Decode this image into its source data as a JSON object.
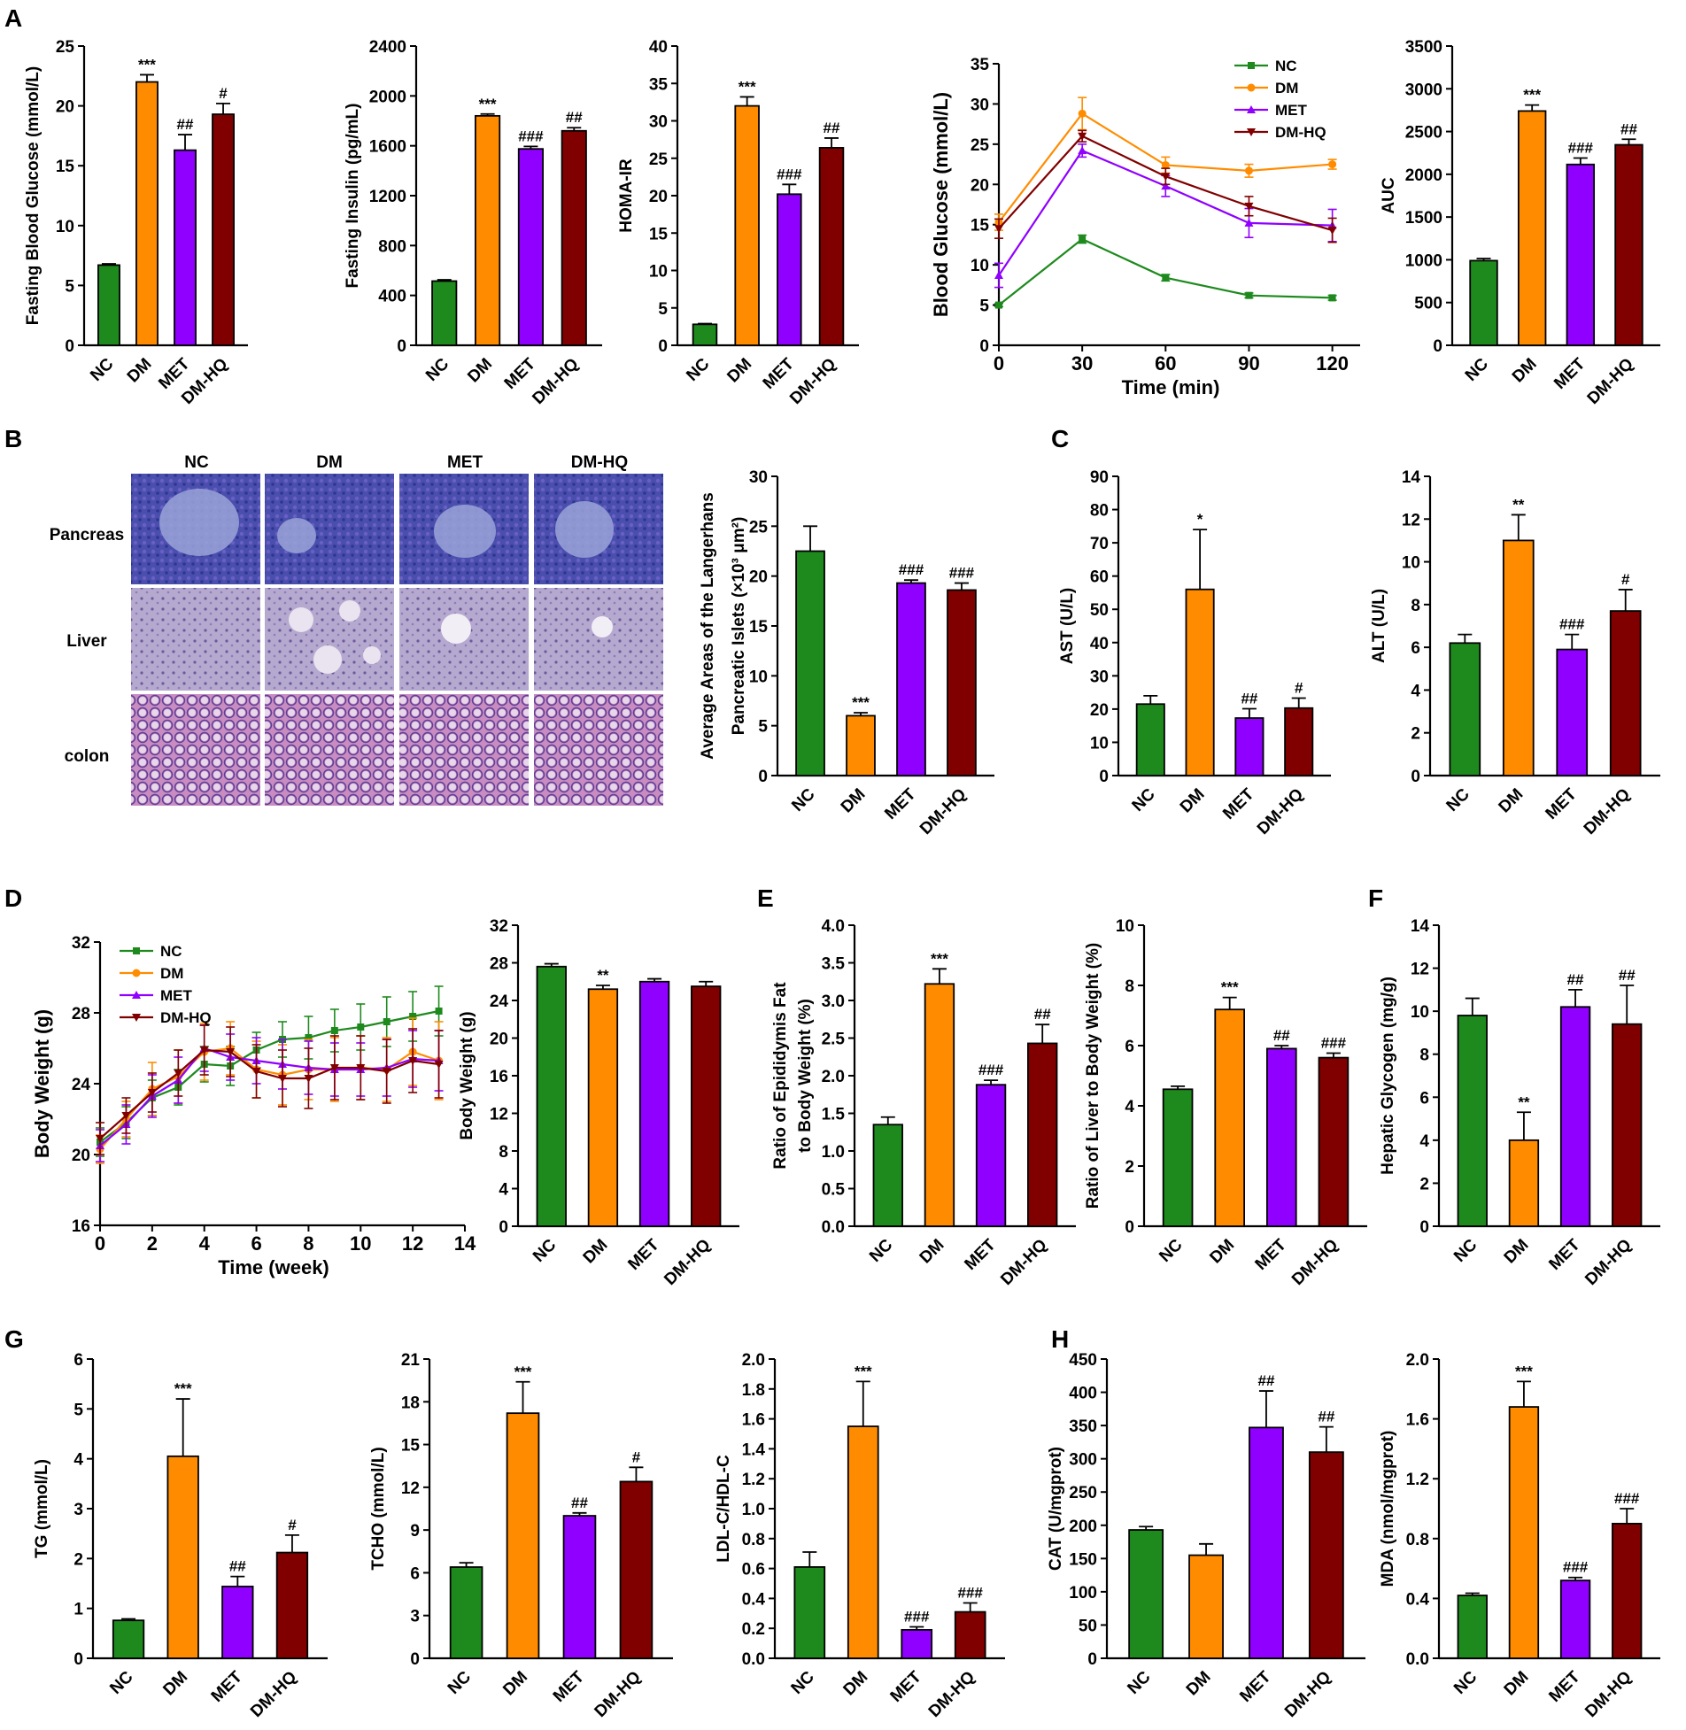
{
  "colors": {
    "NC": "#1e8a1e",
    "DM": "#ff8c00",
    "MET": "#8f00ff",
    "DMHQ": "#800000"
  },
  "panels": {
    "A": "A",
    "B": "B",
    "C": "C",
    "D": "D",
    "E": "E",
    "F": "F",
    "G": "G",
    "H": "H"
  },
  "histology": {
    "columns": [
      "NC",
      "DM",
      "MET",
      "DM-HQ"
    ],
    "rows": [
      "Pancreas",
      "Liver",
      "colon"
    ]
  },
  "chart_data": [
    {
      "id": "fbg",
      "type": "bar",
      "panel": "A",
      "ylabel": "Fasting Blood Glucose (mmol/L)",
      "ylim": [
        0,
        25
      ],
      "yticks": [
        0,
        5,
        10,
        15,
        20,
        25
      ],
      "categories": [
        "NC",
        "DM",
        "MET",
        "DM-HQ"
      ],
      "values": [
        6.7,
        22.0,
        16.3,
        19.3
      ],
      "errors": [
        0.1,
        0.6,
        1.3,
        0.9
      ],
      "annotations": [
        "",
        "***",
        "##",
        "#"
      ]
    },
    {
      "id": "fins",
      "type": "bar",
      "panel": "A",
      "ylabel": "Fasting Insulin (pg/mL)",
      "ylim": [
        0,
        2400
      ],
      "yticks": [
        0,
        400,
        800,
        1200,
        1600,
        2000,
        2400
      ],
      "categories": [
        "NC",
        "DM",
        "MET",
        "DM-HQ"
      ],
      "values": [
        515,
        1840,
        1575,
        1720
      ],
      "errors": [
        10,
        15,
        20,
        25
      ],
      "annotations": [
        "",
        "***",
        "###",
        "##"
      ]
    },
    {
      "id": "homa",
      "type": "bar",
      "panel": "A",
      "ylabel": "HOMA-IR",
      "ylim": [
        0,
        40
      ],
      "yticks": [
        0,
        5,
        10,
        15,
        20,
        25,
        30,
        35,
        40
      ],
      "categories": [
        "NC",
        "DM",
        "MET",
        "DM-HQ"
      ],
      "values": [
        2.8,
        32.0,
        20.2,
        26.4
      ],
      "errors": [
        0.1,
        1.2,
        1.3,
        1.3
      ],
      "annotations": [
        "",
        "***",
        "###",
        "##"
      ]
    },
    {
      "id": "ogtt",
      "type": "line",
      "panel": "A",
      "ylabel": "Blood Glucose (mmol/L)",
      "xlabel": "Time (min)",
      "xlim": [
        0,
        130
      ],
      "ylim": [
        0,
        35
      ],
      "xticks": [
        0,
        30,
        60,
        90,
        120
      ],
      "yticks": [
        0,
        5,
        10,
        15,
        20,
        25,
        30,
        35
      ],
      "x": [
        0,
        30,
        60,
        90,
        120
      ],
      "series": [
        {
          "name": "NC",
          "values": [
            5.0,
            13.2,
            8.4,
            6.2,
            5.9
          ],
          "errors": [
            0.2,
            0.5,
            0.4,
            0.3,
            0.3
          ]
        },
        {
          "name": "DM",
          "values": [
            15.3,
            28.8,
            22.4,
            21.7,
            22.5
          ],
          "errors": [
            1.0,
            2.0,
            1.0,
            0.8,
            0.6
          ]
        },
        {
          "name": "MET",
          "values": [
            8.7,
            24.2,
            19.8,
            15.2,
            14.9
          ],
          "errors": [
            1.5,
            0.8,
            1.3,
            1.8,
            2.0
          ]
        },
        {
          "name": "DM-HQ",
          "values": [
            14.5,
            26.0,
            21.0,
            17.3,
            14.3
          ],
          "errors": [
            1.2,
            0.7,
            1.0,
            1.2,
            1.5
          ]
        }
      ],
      "legend": "top-right"
    },
    {
      "id": "auc",
      "type": "bar",
      "panel": "A",
      "ylabel": "AUC",
      "ylim": [
        0,
        3500
      ],
      "yticks": [
        0,
        500,
        1000,
        1500,
        2000,
        2500,
        3000,
        3500
      ],
      "categories": [
        "NC",
        "DM",
        "MET",
        "DM-HQ"
      ],
      "values": [
        990,
        2740,
        2115,
        2345
      ],
      "errors": [
        25,
        70,
        75,
        65
      ],
      "annotations": [
        "",
        "***",
        "###",
        "##"
      ]
    },
    {
      "id": "islet",
      "type": "bar",
      "panel": "B",
      "ylabel": "Average Areas of the Langerhans",
      "ylabel2": "Pancreatic Islets (×10³ μm²)",
      "ylim": [
        0,
        30
      ],
      "yticks": [
        0,
        5,
        10,
        15,
        20,
        25,
        30
      ],
      "categories": [
        "NC",
        "DM",
        "MET",
        "DM-HQ"
      ],
      "values": [
        22.5,
        6.0,
        19.3,
        18.6
      ],
      "errors": [
        2.5,
        0.3,
        0.3,
        0.7
      ],
      "annotations": [
        "",
        "***",
        "###",
        "###"
      ]
    },
    {
      "id": "ast",
      "type": "bar",
      "panel": "C",
      "ylabel": "AST (U/L)",
      "ylim": [
        0,
        90
      ],
      "yticks": [
        0,
        10,
        20,
        30,
        40,
        50,
        60,
        70,
        80,
        90
      ],
      "categories": [
        "NC",
        "DM",
        "MET",
        "DM-HQ"
      ],
      "values": [
        21.5,
        56.0,
        17.3,
        20.3
      ],
      "errors": [
        2.5,
        18.0,
        2.8,
        3.0
      ],
      "annotations": [
        "",
        "*",
        "##",
        "#"
      ]
    },
    {
      "id": "alt",
      "type": "bar",
      "panel": "C",
      "ylabel": "ALT (U/L)",
      "ylim": [
        0,
        14
      ],
      "yticks": [
        0,
        2,
        4,
        6,
        8,
        10,
        12,
        14
      ],
      "categories": [
        "NC",
        "DM",
        "MET",
        "DM-HQ"
      ],
      "values": [
        6.2,
        11.0,
        5.9,
        7.7
      ],
      "errors": [
        0.4,
        1.2,
        0.7,
        1.0
      ],
      "annotations": [
        "",
        "**",
        "###",
        "#"
      ]
    },
    {
      "id": "bwline",
      "type": "line",
      "panel": "D",
      "ylabel": "Body Weight (g)",
      "xlabel": "Time (week)",
      "xlim": [
        0,
        14
      ],
      "ylim": [
        16,
        32
      ],
      "xticks": [
        0,
        2,
        4,
        6,
        8,
        10,
        12,
        14
      ],
      "yticks": [
        16,
        20,
        24,
        28,
        32
      ],
      "x": [
        0,
        1,
        2,
        3,
        4,
        5,
        6,
        7,
        8,
        9,
        10,
        11,
        12,
        13
      ],
      "series": [
        {
          "name": "NC",
          "values": [
            20.7,
            21.8,
            23.2,
            23.8,
            25.1,
            25.0,
            25.9,
            26.5,
            26.6,
            27.0,
            27.2,
            27.5,
            27.8,
            28.1
          ],
          "errors": [
            0.8,
            0.9,
            1.0,
            1.0,
            1.0,
            1.1,
            1.0,
            1.0,
            1.2,
            1.2,
            1.3,
            1.4,
            1.4,
            1.4
          ]
        },
        {
          "name": "DM",
          "values": [
            20.3,
            22.0,
            23.7,
            24.4,
            25.8,
            26.0,
            24.8,
            24.5,
            24.8,
            24.8,
            24.9,
            24.8,
            25.8,
            25.3
          ],
          "errors": [
            0.8,
            1.0,
            1.5,
            1.5,
            1.6,
            1.5,
            1.6,
            1.7,
            1.7,
            1.8,
            1.8,
            1.8,
            1.9,
            2.2
          ]
        },
        {
          "name": "MET",
          "values": [
            20.5,
            21.7,
            23.3,
            24.2,
            26.0,
            25.5,
            25.3,
            25.1,
            24.9,
            24.8,
            24.8,
            24.9,
            25.4,
            25.3
          ],
          "errors": [
            0.9,
            1.1,
            1.2,
            1.3,
            1.3,
            1.3,
            1.3,
            1.4,
            1.5,
            1.5,
            1.5,
            1.6,
            1.6,
            1.7
          ]
        },
        {
          "name": "DM-HQ",
          "values": [
            20.9,
            22.2,
            23.5,
            24.6,
            25.9,
            25.8,
            24.7,
            24.3,
            24.3,
            24.9,
            24.9,
            24.7,
            25.3,
            25.1
          ],
          "errors": [
            0.9,
            1.0,
            1.1,
            1.3,
            1.4,
            1.4,
            1.5,
            1.6,
            1.7,
            1.8,
            1.8,
            1.8,
            1.8,
            1.9
          ]
        }
      ],
      "legend": "top-left"
    },
    {
      "id": "bwbar",
      "type": "bar",
      "panel": "D",
      "ylabel": "Body Weight (g)",
      "ylim": [
        0,
        32
      ],
      "yticks": [
        0,
        4,
        8,
        12,
        16,
        20,
        24,
        28,
        32
      ],
      "categories": [
        "NC",
        "DM",
        "MET",
        "DM-HQ"
      ],
      "values": [
        27.6,
        25.2,
        26.0,
        25.5
      ],
      "errors": [
        0.3,
        0.4,
        0.3,
        0.5
      ],
      "annotations": [
        "",
        "**",
        "",
        ""
      ]
    },
    {
      "id": "epifat",
      "type": "bar",
      "panel": "E",
      "ylabel": "Ratio of Epididymis Fat",
      "ylabel2": "to Body Weight (%)",
      "ylim": [
        0,
        4.0
      ],
      "yticks": [
        0.0,
        0.5,
        1.0,
        1.5,
        2.0,
        2.5,
        3.0,
        3.5,
        4.0
      ],
      "categories": [
        "NC",
        "DM",
        "MET",
        "DM-HQ"
      ],
      "values": [
        1.35,
        3.22,
        1.88,
        2.43
      ],
      "errors": [
        0.1,
        0.2,
        0.06,
        0.25
      ],
      "annotations": [
        "",
        "***",
        "###",
        "##"
      ]
    },
    {
      "id": "liverratio",
      "type": "bar",
      "panel": "E",
      "ylabel": "Ratio of Liver to Body Weight (%)",
      "ylim": [
        0,
        10
      ],
      "yticks": [
        0,
        2,
        4,
        6,
        8,
        10
      ],
      "categories": [
        "NC",
        "DM",
        "MET",
        "DM-HQ"
      ],
      "values": [
        4.55,
        7.2,
        5.9,
        5.6
      ],
      "errors": [
        0.1,
        0.4,
        0.1,
        0.15
      ],
      "annotations": [
        "",
        "***",
        "##",
        "###"
      ]
    },
    {
      "id": "glycogen",
      "type": "bar",
      "panel": "F",
      "ylabel": "Hepatic Glycogen (mg/g)",
      "ylim": [
        0,
        14
      ],
      "yticks": [
        0,
        2,
        4,
        6,
        8,
        10,
        12,
        14
      ],
      "categories": [
        "NC",
        "DM",
        "MET",
        "DM-HQ"
      ],
      "values": [
        9.8,
        4.0,
        10.2,
        9.4
      ],
      "errors": [
        0.8,
        1.3,
        0.8,
        1.8
      ],
      "annotations": [
        "",
        "**",
        "##",
        "##"
      ]
    },
    {
      "id": "tg",
      "type": "bar",
      "panel": "G",
      "ylabel": "TG (mmol/L)",
      "ylim": [
        0,
        6
      ],
      "yticks": [
        0,
        1,
        2,
        3,
        4,
        5,
        6
      ],
      "categories": [
        "NC",
        "DM",
        "MET",
        "DM-HQ"
      ],
      "values": [
        0.76,
        4.05,
        1.44,
        2.12
      ],
      "errors": [
        0.03,
        1.15,
        0.2,
        0.35
      ],
      "annotations": [
        "",
        "***",
        "##",
        "#"
      ]
    },
    {
      "id": "tcho",
      "type": "bar",
      "panel": "G",
      "ylabel": "TCHO (mmol/L)",
      "ylim": [
        0,
        21
      ],
      "yticks": [
        0,
        3,
        6,
        9,
        12,
        15,
        18,
        21
      ],
      "categories": [
        "NC",
        "DM",
        "MET",
        "DM-HQ"
      ],
      "values": [
        6.4,
        17.2,
        10.0,
        12.4
      ],
      "errors": [
        0.3,
        2.2,
        0.2,
        1.0
      ],
      "annotations": [
        "",
        "***",
        "##",
        "#"
      ]
    },
    {
      "id": "ldl",
      "type": "bar",
      "panel": "G",
      "ylabel": "LDL-C/HDL-C",
      "ylim": [
        0,
        2.0
      ],
      "yticks": [
        0.0,
        0.2,
        0.4,
        0.6,
        0.8,
        1.0,
        1.2,
        1.4,
        1.6,
        1.8,
        2.0
      ],
      "categories": [
        "NC",
        "DM",
        "MET",
        "DM-HQ"
      ],
      "values": [
        0.61,
        1.55,
        0.19,
        0.31
      ],
      "errors": [
        0.1,
        0.3,
        0.02,
        0.06
      ],
      "annotations": [
        "",
        "***",
        "###",
        "###"
      ]
    },
    {
      "id": "cat",
      "type": "bar",
      "panel": "H",
      "ylabel": "CAT (U/mgprot)",
      "ylim": [
        0,
        450
      ],
      "yticks": [
        0,
        50,
        100,
        150,
        200,
        250,
        300,
        350,
        400,
        450
      ],
      "categories": [
        "NC",
        "DM",
        "MET",
        "DM-HQ"
      ],
      "values": [
        193,
        155,
        347,
        310
      ],
      "errors": [
        5,
        17,
        55,
        38
      ],
      "annotations": [
        "",
        "",
        "##",
        "##"
      ]
    },
    {
      "id": "mda",
      "type": "bar",
      "panel": "H",
      "ylabel": "MDA (nmol/mgprot)",
      "ylim": [
        0,
        2.0
      ],
      "yticks": [
        0.0,
        0.4,
        0.8,
        1.2,
        1.6,
        2.0
      ],
      "categories": [
        "NC",
        "DM",
        "MET",
        "DM-HQ"
      ],
      "values": [
        0.42,
        1.68,
        0.52,
        0.9
      ],
      "errors": [
        0.015,
        0.17,
        0.02,
        0.1
      ],
      "annotations": [
        "",
        "***",
        "###",
        "###"
      ]
    }
  ]
}
